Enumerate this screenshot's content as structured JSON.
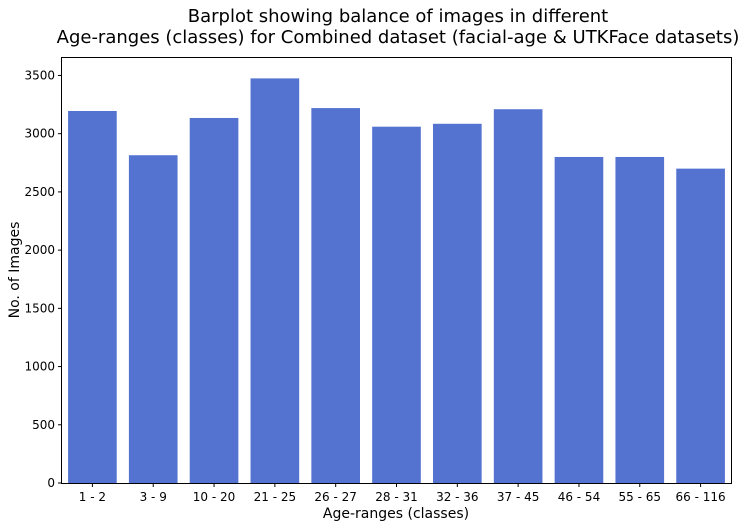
{
  "chart_data": {
    "type": "bar",
    "title_lines": [
      "Barplot showing balance of images in different",
      "Age-ranges (classes) for Combined dataset (facial-age & UTKFace datasets)"
    ],
    "xlabel": "Age-ranges (classes)",
    "ylabel": "No. of Images",
    "categories": [
      "1 - 2",
      "3 - 9",
      "10 - 20",
      "21 - 25",
      "26 - 27",
      "28 - 31",
      "32 - 36",
      "37 - 45",
      "46 - 54",
      "55 - 65",
      "66 - 116"
    ],
    "values": [
      3195,
      2815,
      3135,
      3475,
      3220,
      3060,
      3085,
      3210,
      2800,
      2800,
      2700
    ],
    "yticks": [
      0,
      500,
      1000,
      1500,
      2000,
      2500,
      3000,
      3500
    ],
    "ylim": [
      0,
      3650
    ],
    "grid": false,
    "bar_color": "#5473d1"
  }
}
